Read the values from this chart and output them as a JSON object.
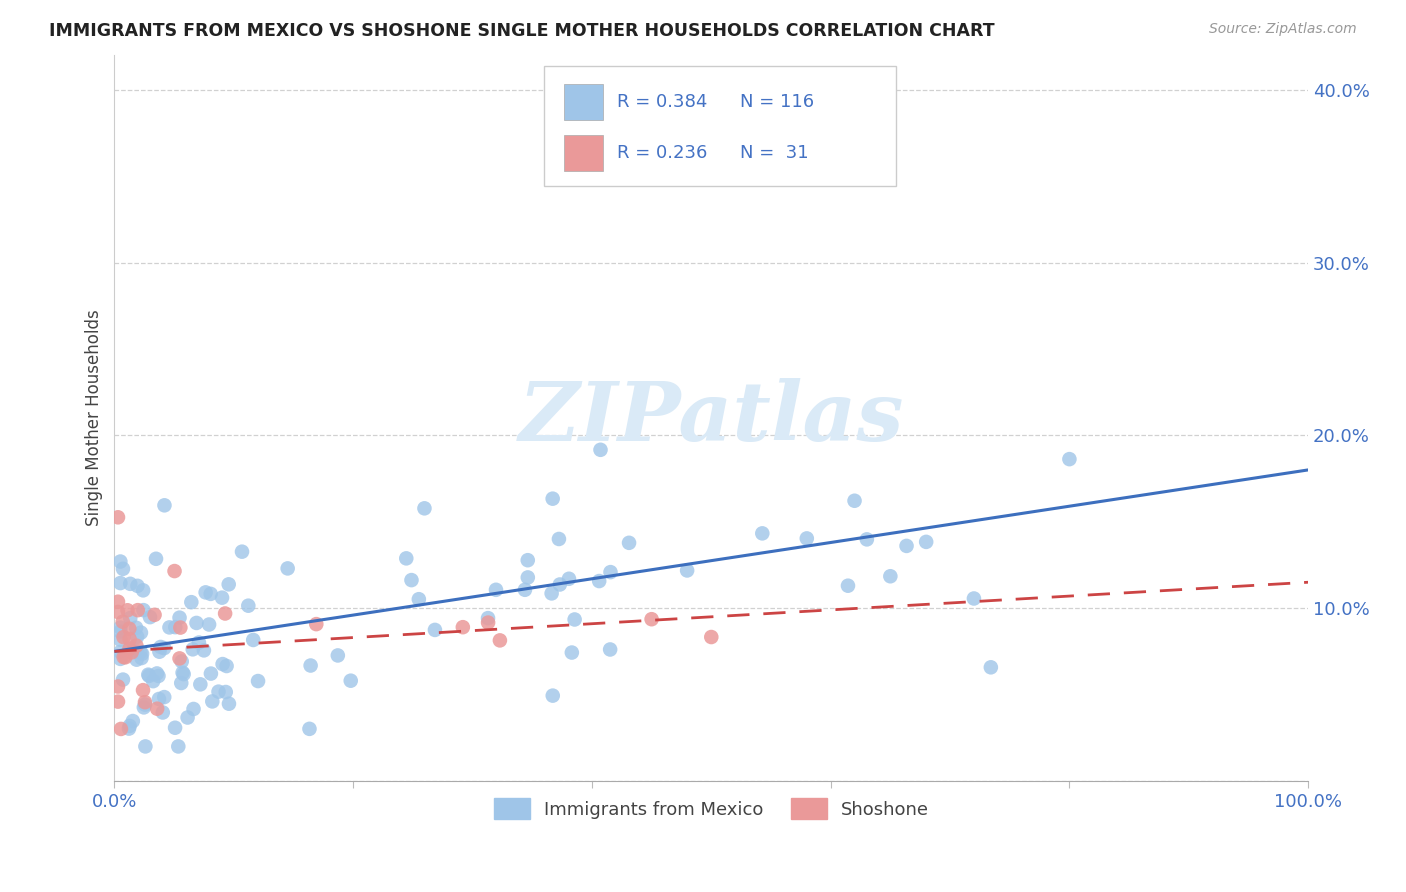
{
  "title": "IMMIGRANTS FROM MEXICO VS SHOSHONE SINGLE MOTHER HOUSEHOLDS CORRELATION CHART",
  "source": "Source: ZipAtlas.com",
  "ylabel": "Single Mother Households",
  "legend_label1": "Immigrants from Mexico",
  "legend_label2": "Shoshone",
  "r1": 0.384,
  "n1": 116,
  "r2": 0.236,
  "n2": 31,
  "xlim": [
    0.0,
    1.0
  ],
  "ylim": [
    0.0,
    0.42
  ],
  "yticks": [
    0.0,
    0.1,
    0.2,
    0.3,
    0.4
  ],
  "ytick_labels": [
    "",
    "10.0%",
    "20.0%",
    "30.0%",
    "40.0%"
  ],
  "xticks": [
    0.0,
    0.2,
    0.4,
    0.6,
    0.8,
    1.0
  ],
  "xtick_labels": [
    "0.0%",
    "",
    "",
    "",
    "",
    "100.0%"
  ],
  "blue_color": "#9fc5e8",
  "pink_color": "#ea9999",
  "trend_blue": "#3d6fbe",
  "trend_pink": "#cc4444",
  "axis_color": "#4472c4",
  "watermark": "ZIPatlas",
  "watermark_color": "#daeaf7",
  "blue_intercept": 0.075,
  "blue_slope": 0.105,
  "pink_intercept": 0.075,
  "pink_slope": 0.04
}
